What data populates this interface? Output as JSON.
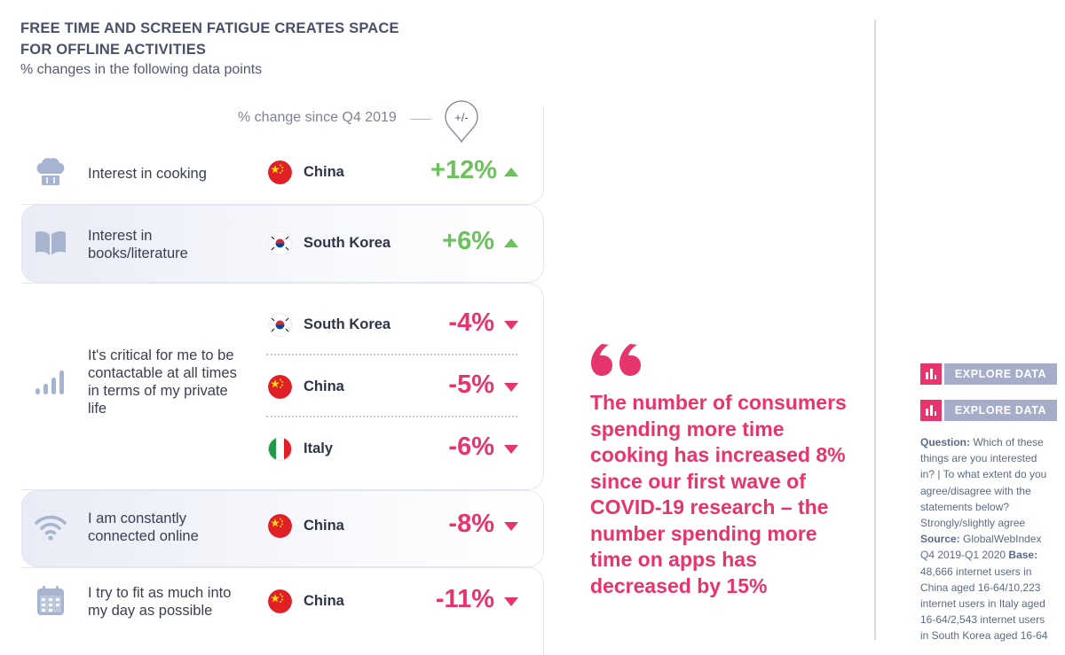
{
  "header": {
    "title": "FREE TIME AND SCREEN FATIGUE CREATES SPACE FOR OFFLINE ACTIVITIES",
    "subtitle": "% changes in the following data points"
  },
  "chart_data": {
    "type": "table",
    "title": "FREE TIME AND SCREEN FATIGUE CREATES SPACE FOR OFFLINE ACTIVITIES",
    "subtitle": "% changes in the following data points",
    "column_label": "% change since Q4 2019",
    "pin_label": "+/-",
    "rows": [
      {
        "item": "Interest in cooking",
        "icon": "chef-hat-icon",
        "entries": [
          {
            "country": "China",
            "value": "+12%",
            "num": 12
          }
        ]
      },
      {
        "item": "Interest in books/literature",
        "icon": "book-icon",
        "entries": [
          {
            "country": "South Korea",
            "value": "+6%",
            "num": 6
          }
        ]
      },
      {
        "item": "It's critical for me to be contactable at all times in terms of my private life",
        "icon": "signal-bars-icon",
        "entries": [
          {
            "country": "South Korea",
            "value": "-4%",
            "num": -4
          },
          {
            "country": "China",
            "value": "-5%",
            "num": -5
          },
          {
            "country": "Italy",
            "value": "-6%",
            "num": -6
          }
        ]
      },
      {
        "item": "I am constantly connected online",
        "icon": "wifi-icon",
        "entries": [
          {
            "country": "China",
            "value": "-8%",
            "num": -8
          }
        ]
      },
      {
        "item": "I try to fit as much into my day as possible",
        "icon": "calendar-icon",
        "entries": [
          {
            "country": "China",
            "value": "-11%",
            "num": -11
          }
        ]
      }
    ]
  },
  "labels": {
    "row1": "Interest in cooking",
    "row2": "Interest in books/literature",
    "row3": "It's critical for me to be contactable at all times in terms of my private life",
    "row4": "I am constantly connected online",
    "row5": "I try to fit as much into my day as possible"
  },
  "quote": {
    "mark": "“",
    "text": "The number of consumers spending more time cooking has increased 8% since our first wave of COVID-19 research – the number spending more time on apps has decreased by 15%"
  },
  "sidebar": {
    "explore_label": "EXPLORE DATA",
    "question_label": "Question:",
    "question_text": "Which of these things are you interested in? | To what extent do you agree/disagree with the statements below? Strongly/slightly agree",
    "source_label": "Source:",
    "source_text": "GlobalWebIndex Q4 2019-Q1 2020",
    "base_label": "Base:",
    "base_text": "48,666 internet users in China aged 16-64/10,223 internet users in Italy aged 16-64/2,543 internet users in South Korea aged 16-64"
  },
  "colors": {
    "positive": "#6cc15d",
    "negative": "#e8346c",
    "icon": "#a6b4d0",
    "button": "#a6adc8"
  }
}
